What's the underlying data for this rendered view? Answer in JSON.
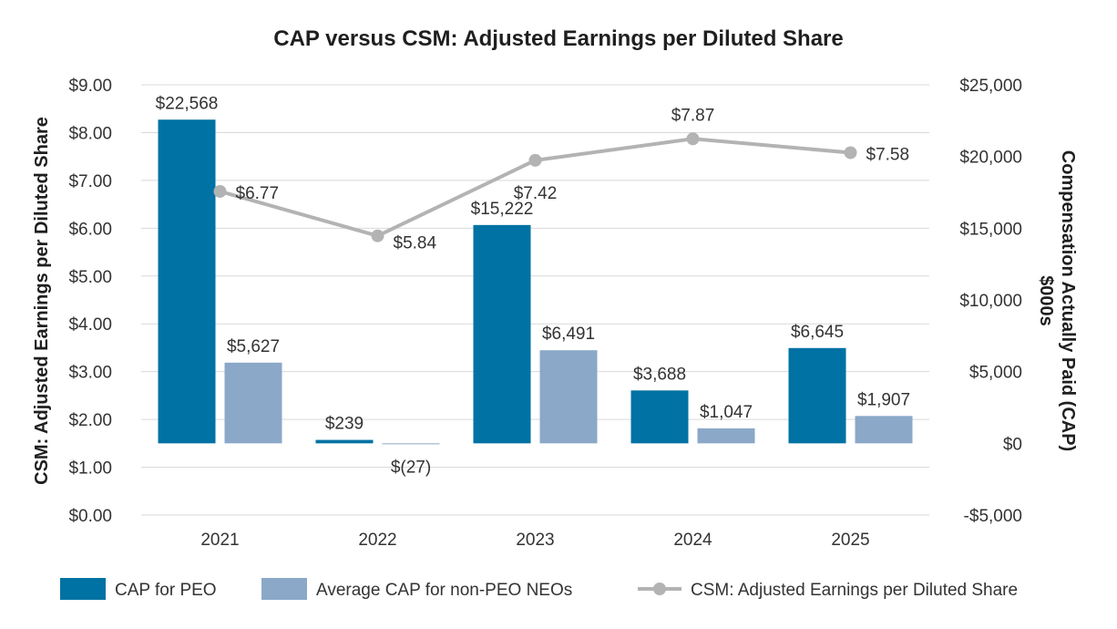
{
  "chart_data": {
    "type": "bar",
    "title": "CAP versus CSM: Adjusted Earnings per Diluted Share",
    "categories": [
      "2021",
      "2022",
      "2023",
      "2024",
      "2025"
    ],
    "series": [
      {
        "name": "CAP for PEO",
        "kind": "bar",
        "axis": "right",
        "color": "#0072A3",
        "values": [
          22568,
          239,
          15222,
          3688,
          6645
        ],
        "labels": [
          "$22,568",
          "$239",
          "$15,222",
          "$3,688",
          "$6,645"
        ]
      },
      {
        "name": "Average CAP for non-PEO NEOs",
        "kind": "bar",
        "axis": "right",
        "color": "#8BA8C8",
        "values": [
          5627,
          -27,
          6491,
          1047,
          1907
        ],
        "labels": [
          "$5,627",
          "$(27)",
          "$6,491",
          "$1,047",
          "$1,907"
        ]
      },
      {
        "name": "CSM: Adjusted Earnings per Diluted Share",
        "kind": "line",
        "axis": "left",
        "color": "#B3B3B3",
        "values": [
          6.77,
          5.84,
          7.42,
          7.87,
          7.58
        ],
        "labels": [
          "$6.77",
          "$5.84",
          "$7.42",
          "$7.87",
          "$7.58"
        ]
      }
    ],
    "left_axis": {
      "label": "CSM: Adjusted Earnings per Diluted Share",
      "ylim": [
        0,
        9
      ],
      "ticks": [
        0,
        1,
        2,
        3,
        4,
        5,
        6,
        7,
        8,
        9
      ],
      "tick_labels": [
        "$0.00",
        "$1.00",
        "$2.00",
        "$3.00",
        "$4.00",
        "$5.00",
        "$6.00",
        "$7.00",
        "$8.00",
        "$9.00"
      ]
    },
    "right_axis": {
      "label_line1": "Compensation Actually Paid (CAP)",
      "label_line2": "$000s",
      "ylim": [
        -5000,
        25000
      ],
      "ticks": [
        -5000,
        0,
        5000,
        10000,
        15000,
        20000,
        25000
      ],
      "tick_labels": [
        "-$5,000",
        "$0",
        "$5,000",
        "$10,000",
        "$15,000",
        "$20,000",
        "$25,000"
      ]
    },
    "grid": true,
    "legend_position": "bottom"
  }
}
